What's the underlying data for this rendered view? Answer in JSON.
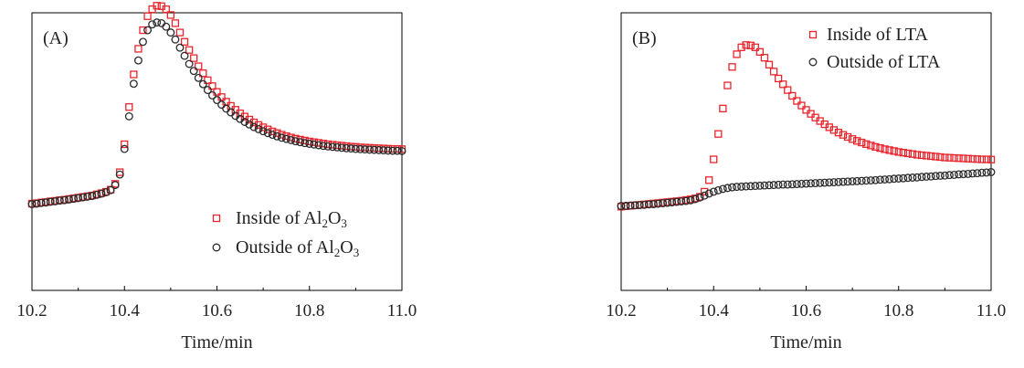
{
  "chart_data": [
    {
      "type": "scatter",
      "panel_label": "(A)",
      "xlabel": "Time/min",
      "ylabel": "",
      "xlim": [
        10.2,
        11.0
      ],
      "ylim": [
        0,
        100
      ],
      "xticks": [
        "10.2",
        "10.4",
        "10.6",
        "10.8",
        "11.0"
      ],
      "legend_position": "bottom-right",
      "series": [
        {
          "name": "Inside of Al2O3",
          "legend_parts": [
            "Inside of Al",
            "2",
            "O",
            "3"
          ],
          "marker": "square",
          "color": "#e8242c",
          "x": [
            10.2,
            10.21,
            10.22,
            10.23,
            10.24,
            10.25,
            10.26,
            10.27,
            10.28,
            10.29,
            10.3,
            10.31,
            10.32,
            10.33,
            10.34,
            10.35,
            10.36,
            10.37,
            10.38,
            10.39,
            10.4,
            10.41,
            10.42,
            10.43,
            10.44,
            10.45,
            10.46,
            10.47,
            10.48,
            10.49,
            10.5,
            10.51,
            10.52,
            10.53,
            10.54,
            10.55,
            10.56,
            10.57,
            10.58,
            10.59,
            10.6,
            10.61,
            10.62,
            10.63,
            10.64,
            10.65,
            10.66,
            10.67,
            10.68,
            10.69,
            10.7,
            10.71,
            10.72,
            10.73,
            10.74,
            10.75,
            10.76,
            10.77,
            10.78,
            10.79,
            10.8,
            10.81,
            10.82,
            10.83,
            10.84,
            10.85,
            10.86,
            10.87,
            10.88,
            10.89,
            10.9,
            10.91,
            10.92,
            10.93,
            10.94,
            10.95,
            10.96,
            10.97,
            10.98,
            10.99,
            11.0
          ],
          "y": [
            14.5,
            14.7,
            15.0,
            15.2,
            15.5,
            15.7,
            16.0,
            16.2,
            16.5,
            16.8,
            17.1,
            17.4,
            17.7,
            18.0,
            18.5,
            19.0,
            19.6,
            20.5,
            23,
            28,
            40,
            56,
            70,
            81,
            89,
            95,
            98,
            99.5,
            99.3,
            98,
            95.5,
            92,
            88,
            84,
            80.5,
            77,
            73.5,
            70.5,
            67.5,
            65,
            62.5,
            60.3,
            58.3,
            56.5,
            54.8,
            53.3,
            51.9,
            50.6,
            49.4,
            48.3,
            47.3,
            46.4,
            45.5,
            44.8,
            44.1,
            43.5,
            42.9,
            42.4,
            42,
            41.6,
            41.2,
            40.9,
            40.6,
            40.3,
            40,
            39.8,
            39.6,
            39.4,
            39.2,
            39,
            38.9,
            38.7,
            38.6,
            38.5,
            38.4,
            38.3,
            38.2,
            38.1,
            38,
            38,
            37.9
          ]
        },
        {
          "name": "Outside of Al2O3",
          "legend_parts": [
            "Outside of Al",
            "2",
            "O",
            "3"
          ],
          "marker": "circle",
          "color": "#2a2a2a",
          "x": [
            10.2,
            10.21,
            10.22,
            10.23,
            10.24,
            10.25,
            10.26,
            10.27,
            10.28,
            10.29,
            10.3,
            10.31,
            10.32,
            10.33,
            10.34,
            10.35,
            10.36,
            10.37,
            10.38,
            10.39,
            10.4,
            10.41,
            10.42,
            10.43,
            10.44,
            10.45,
            10.46,
            10.47,
            10.48,
            10.49,
            10.5,
            10.51,
            10.52,
            10.53,
            10.54,
            10.55,
            10.56,
            10.57,
            10.58,
            10.59,
            10.6,
            10.61,
            10.62,
            10.63,
            10.64,
            10.65,
            10.66,
            10.67,
            10.68,
            10.69,
            10.7,
            10.71,
            10.72,
            10.73,
            10.74,
            10.75,
            10.76,
            10.77,
            10.78,
            10.79,
            10.8,
            10.81,
            10.82,
            10.83,
            10.84,
            10.85,
            10.86,
            10.87,
            10.88,
            10.89,
            10.9,
            10.91,
            10.92,
            10.93,
            10.94,
            10.95,
            10.96,
            10.97,
            10.98,
            10.99,
            11.0
          ],
          "y": [
            14.3,
            14.5,
            14.8,
            15.0,
            15.3,
            15.5,
            15.8,
            16.0,
            16.3,
            16.6,
            16.9,
            17.2,
            17.5,
            17.8,
            18.3,
            18.8,
            19.4,
            20.3,
            22.5,
            27,
            38,
            52,
            66,
            76,
            84,
            89,
            91.5,
            92.3,
            92,
            90.5,
            88,
            85,
            81.5,
            78,
            74.5,
            71.5,
            68.5,
            65.8,
            63.3,
            61,
            59,
            57,
            55.3,
            53.7,
            52.2,
            50.9,
            49.6,
            48.5,
            47.4,
            46.5,
            45.6,
            44.8,
            44.1,
            43.4,
            42.8,
            42.3,
            41.8,
            41.3,
            40.9,
            40.5,
            40.2,
            39.9,
            39.6,
            39.3,
            39.1,
            38.9,
            38.7,
            38.5,
            38.3,
            38.2,
            38,
            37.9,
            37.8,
            37.7,
            37.6,
            37.5,
            37.4,
            37.3,
            37.2,
            37.2,
            37.1
          ]
        }
      ]
    },
    {
      "type": "scatter",
      "panel_label": "(B)",
      "xlabel": "Time/min",
      "ylabel": "",
      "xlim": [
        10.2,
        11.0
      ],
      "ylim": [
        0,
        100
      ],
      "xticks": [
        "10.2",
        "10.4",
        "10.6",
        "10.8",
        "11.0"
      ],
      "legend_position": "top-right",
      "series": [
        {
          "name": "Inside of LTA",
          "legend_parts": [
            "Inside of LTA"
          ],
          "marker": "square",
          "color": "#e8242c",
          "x": [
            10.2,
            10.21,
            10.22,
            10.23,
            10.24,
            10.25,
            10.26,
            10.27,
            10.28,
            10.29,
            10.3,
            10.31,
            10.32,
            10.33,
            10.34,
            10.35,
            10.36,
            10.37,
            10.38,
            10.39,
            10.4,
            10.41,
            10.42,
            10.43,
            10.44,
            10.45,
            10.46,
            10.47,
            10.48,
            10.49,
            10.5,
            10.51,
            10.52,
            10.53,
            10.54,
            10.55,
            10.56,
            10.57,
            10.58,
            10.59,
            10.6,
            10.61,
            10.62,
            10.63,
            10.64,
            10.65,
            10.66,
            10.67,
            10.68,
            10.69,
            10.7,
            10.71,
            10.72,
            10.73,
            10.74,
            10.75,
            10.76,
            10.77,
            10.78,
            10.79,
            10.8,
            10.81,
            10.82,
            10.83,
            10.84,
            10.85,
            10.86,
            10.87,
            10.88,
            10.89,
            10.9,
            10.91,
            10.92,
            10.93,
            10.94,
            10.95,
            10.96,
            10.97,
            10.98,
            10.99,
            11.0
          ],
          "y": [
            12.5,
            12.7,
            12.9,
            13.1,
            13.3,
            13.5,
            13.7,
            13.9,
            14.1,
            14.3,
            14.5,
            14.7,
            14.9,
            15.1,
            15.4,
            15.7,
            16.1,
            16.8,
            19,
            24,
            33,
            44,
            55,
            65,
            73,
            78.5,
            81.5,
            82.5,
            82.3,
            81.5,
            79.5,
            77,
            74,
            71,
            68,
            65.5,
            63,
            60.5,
            58.3,
            56.3,
            54.4,
            52.7,
            51.1,
            49.6,
            48.2,
            46.9,
            45.7,
            44.6,
            43.6,
            42.7,
            41.8,
            41,
            40.3,
            39.6,
            39,
            38.4,
            37.9,
            37.4,
            37,
            36.6,
            36.2,
            35.9,
            35.6,
            35.3,
            35,
            34.8,
            34.6,
            34.4,
            34.2,
            34,
            33.8,
            33.7,
            33.6,
            33.5,
            33.4,
            33.3,
            33.2,
            33.1,
            33,
            33,
            32.9
          ]
        },
        {
          "name": "Outside of LTA",
          "legend_parts": [
            "Outside of LTA"
          ],
          "marker": "circle",
          "color": "#2a2a2a",
          "x": [
            10.2,
            10.21,
            10.22,
            10.23,
            10.24,
            10.25,
            10.26,
            10.27,
            10.28,
            10.29,
            10.3,
            10.31,
            10.32,
            10.33,
            10.34,
            10.35,
            10.36,
            10.37,
            10.38,
            10.39,
            10.4,
            10.41,
            10.42,
            10.43,
            10.44,
            10.45,
            10.46,
            10.47,
            10.48,
            10.49,
            10.5,
            10.51,
            10.52,
            10.53,
            10.54,
            10.55,
            10.56,
            10.57,
            10.58,
            10.59,
            10.6,
            10.61,
            10.62,
            10.63,
            10.64,
            10.65,
            10.66,
            10.67,
            10.68,
            10.69,
            10.7,
            10.71,
            10.72,
            10.73,
            10.74,
            10.75,
            10.76,
            10.77,
            10.78,
            10.79,
            10.8,
            10.81,
            10.82,
            10.83,
            10.84,
            10.85,
            10.86,
            10.87,
            10.88,
            10.89,
            10.9,
            10.91,
            10.92,
            10.93,
            10.94,
            10.95,
            10.96,
            10.97,
            10.98,
            10.99,
            11.0
          ],
          "y": [
            12.8,
            12.9,
            13.0,
            13.1,
            13.2,
            13.3,
            13.5,
            13.6,
            13.8,
            14.0,
            14.2,
            14.4,
            14.6,
            14.8,
            15.0,
            15.3,
            15.8,
            16.5,
            17.3,
            18.2,
            19.0,
            19.6,
            20.2,
            20.6,
            20.9,
            21.1,
            21.2,
            21.3,
            21.4,
            21.5,
            21.6,
            21.7,
            21.8,
            21.9,
            22.0,
            22.1,
            22.1,
            22.2,
            22.3,
            22.4,
            22.5,
            22.6,
            22.7,
            22.8,
            22.9,
            23.0,
            23.1,
            23.2,
            23.3,
            23.4,
            23.5,
            23.6,
            23.7,
            23.8,
            23.9,
            24.0,
            24.2,
            24.3,
            24.4,
            24.6,
            24.7,
            24.8,
            25.0,
            25.1,
            25.2,
            25.4,
            25.5,
            25.6,
            25.8,
            25.9,
            26.0,
            26.2,
            26.3,
            26.5,
            26.6,
            26.7,
            26.9,
            27.0,
            27.2,
            27.3,
            27.5
          ]
        }
      ]
    }
  ]
}
